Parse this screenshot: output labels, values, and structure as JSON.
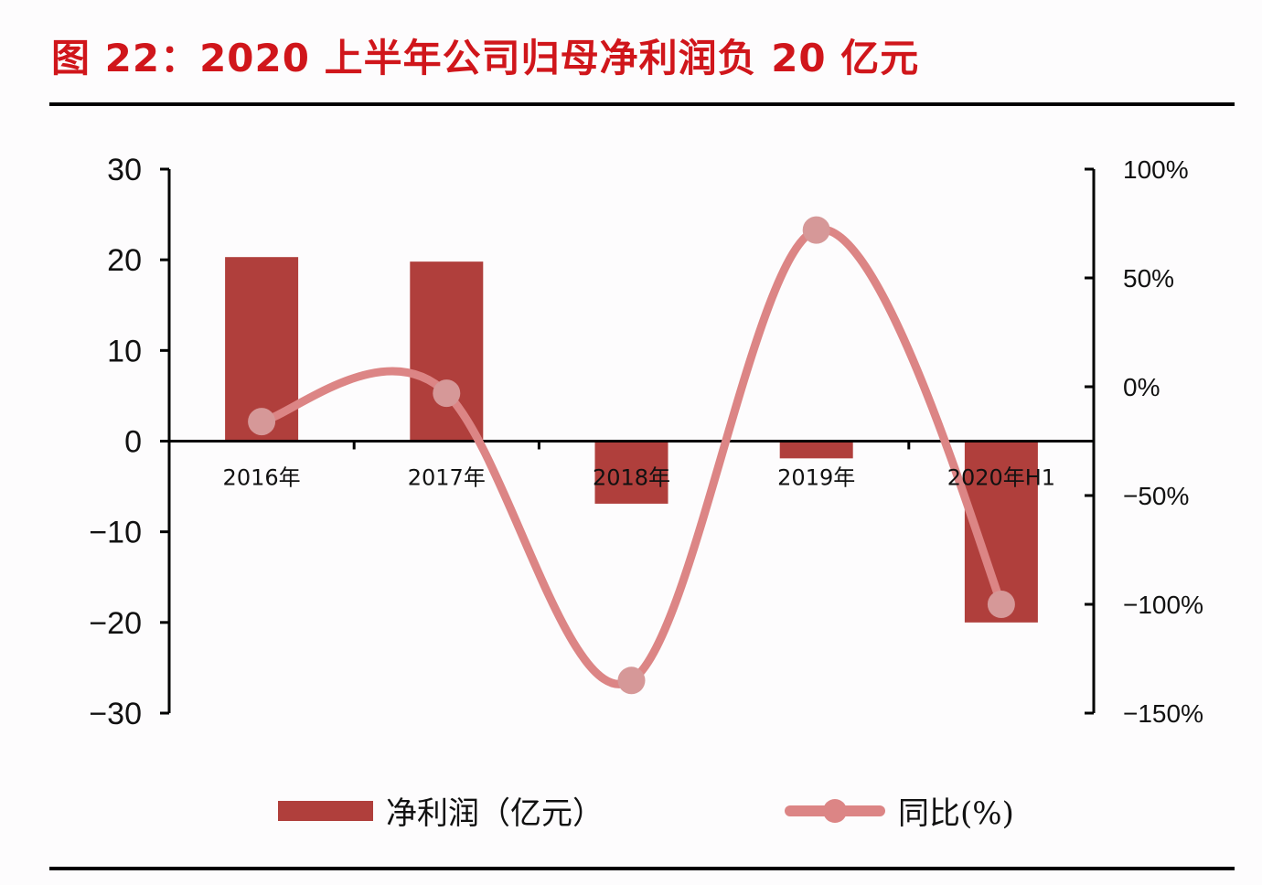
{
  "title": "图  22：2020 上半年公司归母净利润负 20 亿元",
  "colors": {
    "title": "#d0161b",
    "bar": "#b03f3c",
    "line": "#dc8585",
    "marker": "#d69898"
  },
  "legend": {
    "bar_label": "净利润（亿元）",
    "line_label": "同比(%)"
  },
  "axes": {
    "left_ticks": [
      "30",
      "20",
      "10",
      "0",
      "−10",
      "−20",
      "−30"
    ],
    "right_ticks": [
      "100%",
      "50%",
      "0%",
      "−50%",
      "−100%",
      "−150%"
    ]
  },
  "chart_data": {
    "type": "bar+line",
    "title": "2020 上半年公司归母净利润负 20 亿元",
    "figure_label": "图 22",
    "categories": [
      "2016年",
      "2017年",
      "2018年",
      "2019年",
      "2020年H1"
    ],
    "series": [
      {
        "name": "净利润（亿元）",
        "type": "bar",
        "axis": "left",
        "values": [
          20.3,
          19.8,
          -6.9,
          -1.9,
          -20.0
        ]
      },
      {
        "name": "同比(%)",
        "type": "line",
        "axis": "right",
        "smooth": true,
        "markers": true,
        "values": [
          -16,
          -3,
          -135,
          72,
          -100
        ]
      }
    ],
    "ylim_left": [
      -30,
      30
    ],
    "yticks_left": [
      30,
      20,
      10,
      0,
      -10,
      -20,
      -30
    ],
    "ylim_right": [
      -150,
      100
    ],
    "yticks_right": [
      "100%",
      "50%",
      "0%",
      "-50%",
      "-100%",
      "-150%"
    ],
    "xlabel": "",
    "ylabel": "",
    "grid": false,
    "legend_position": "bottom"
  }
}
